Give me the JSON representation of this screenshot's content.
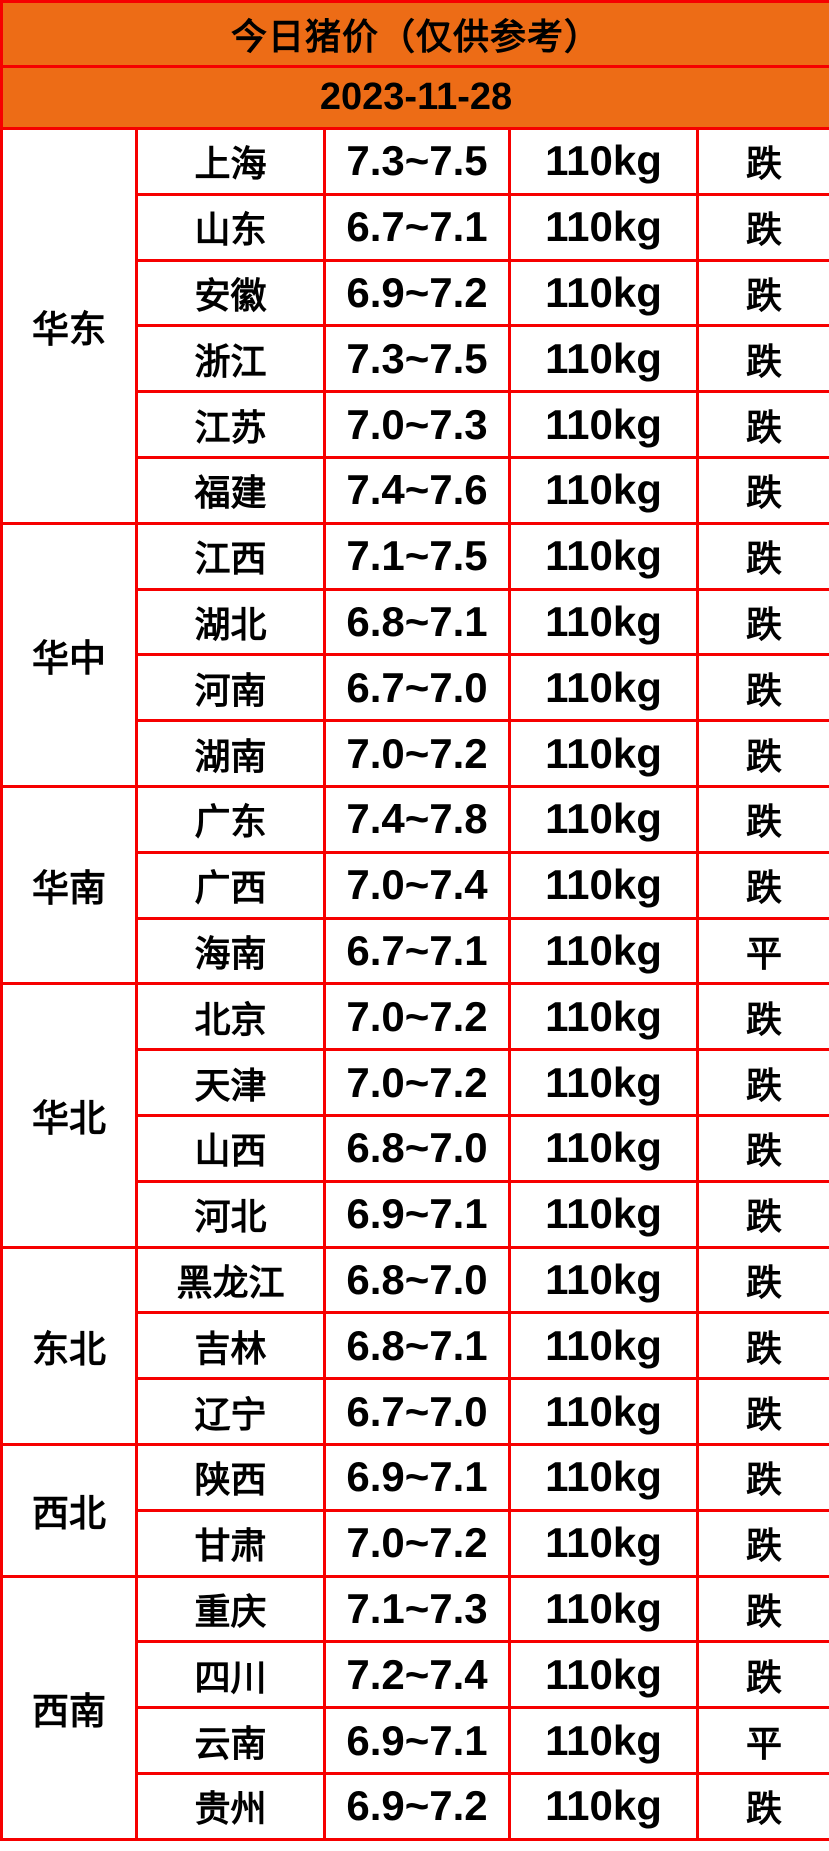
{
  "header": {
    "title": "今日猪价（仅供参考）",
    "date": "2023-11-28"
  },
  "colors": {
    "header_bg": "#ED6C16",
    "grid_border": "#F60000",
    "status_down": "#28C828",
    "status_flat": "#000000",
    "text": "#000000",
    "background": "#FFFFFF"
  },
  "status_legend": {
    "down_label": "跌",
    "flat_label": "平"
  },
  "chart_data": {
    "type": "table",
    "title": "今日猪价（仅供参考）",
    "subtitle": "2023-11-28",
    "columns": [
      "region",
      "province",
      "price_range",
      "weight",
      "status"
    ],
    "rows": [
      [
        "华东",
        "上海",
        "7.3~7.5",
        "110kg",
        "跌"
      ],
      [
        "华东",
        "山东",
        "6.7~7.1",
        "110kg",
        "跌"
      ],
      [
        "华东",
        "安徽",
        "6.9~7.2",
        "110kg",
        "跌"
      ],
      [
        "华东",
        "浙江",
        "7.3~7.5",
        "110kg",
        "跌"
      ],
      [
        "华东",
        "江苏",
        "7.0~7.3",
        "110kg",
        "跌"
      ],
      [
        "华东",
        "福建",
        "7.4~7.6",
        "110kg",
        "跌"
      ],
      [
        "华中",
        "江西",
        "7.1~7.5",
        "110kg",
        "跌"
      ],
      [
        "华中",
        "湖北",
        "6.8~7.1",
        "110kg",
        "跌"
      ],
      [
        "华中",
        "河南",
        "6.7~7.0",
        "110kg",
        "跌"
      ],
      [
        "华中",
        "湖南",
        "7.0~7.2",
        "110kg",
        "跌"
      ],
      [
        "华南",
        "广东",
        "7.4~7.8",
        "110kg",
        "跌"
      ],
      [
        "华南",
        "广西",
        "7.0~7.4",
        "110kg",
        "跌"
      ],
      [
        "华南",
        "海南",
        "6.7~7.1",
        "110kg",
        "平"
      ],
      [
        "华北",
        "北京",
        "7.0~7.2",
        "110kg",
        "跌"
      ],
      [
        "华北",
        "天津",
        "7.0~7.2",
        "110kg",
        "跌"
      ],
      [
        "华北",
        "山西",
        "6.8~7.0",
        "110kg",
        "跌"
      ],
      [
        "华北",
        "河北",
        "6.9~7.1",
        "110kg",
        "跌"
      ],
      [
        "东北",
        "黑龙江",
        "6.8~7.0",
        "110kg",
        "跌"
      ],
      [
        "东北",
        "吉林",
        "6.8~7.1",
        "110kg",
        "跌"
      ],
      [
        "东北",
        "辽宁",
        "6.7~7.0",
        "110kg",
        "跌"
      ],
      [
        "西北",
        "陕西",
        "6.9~7.1",
        "110kg",
        "跌"
      ],
      [
        "西北",
        "甘肃",
        "7.0~7.2",
        "110kg",
        "跌"
      ],
      [
        "西南",
        "重庆",
        "7.1~7.3",
        "110kg",
        "跌"
      ],
      [
        "西南",
        "四川",
        "7.2~7.4",
        "110kg",
        "跌"
      ],
      [
        "西南",
        "云南",
        "6.9~7.1",
        "110kg",
        "平"
      ],
      [
        "西南",
        "贵州",
        "6.9~7.2",
        "110kg",
        "跌"
      ]
    ]
  }
}
